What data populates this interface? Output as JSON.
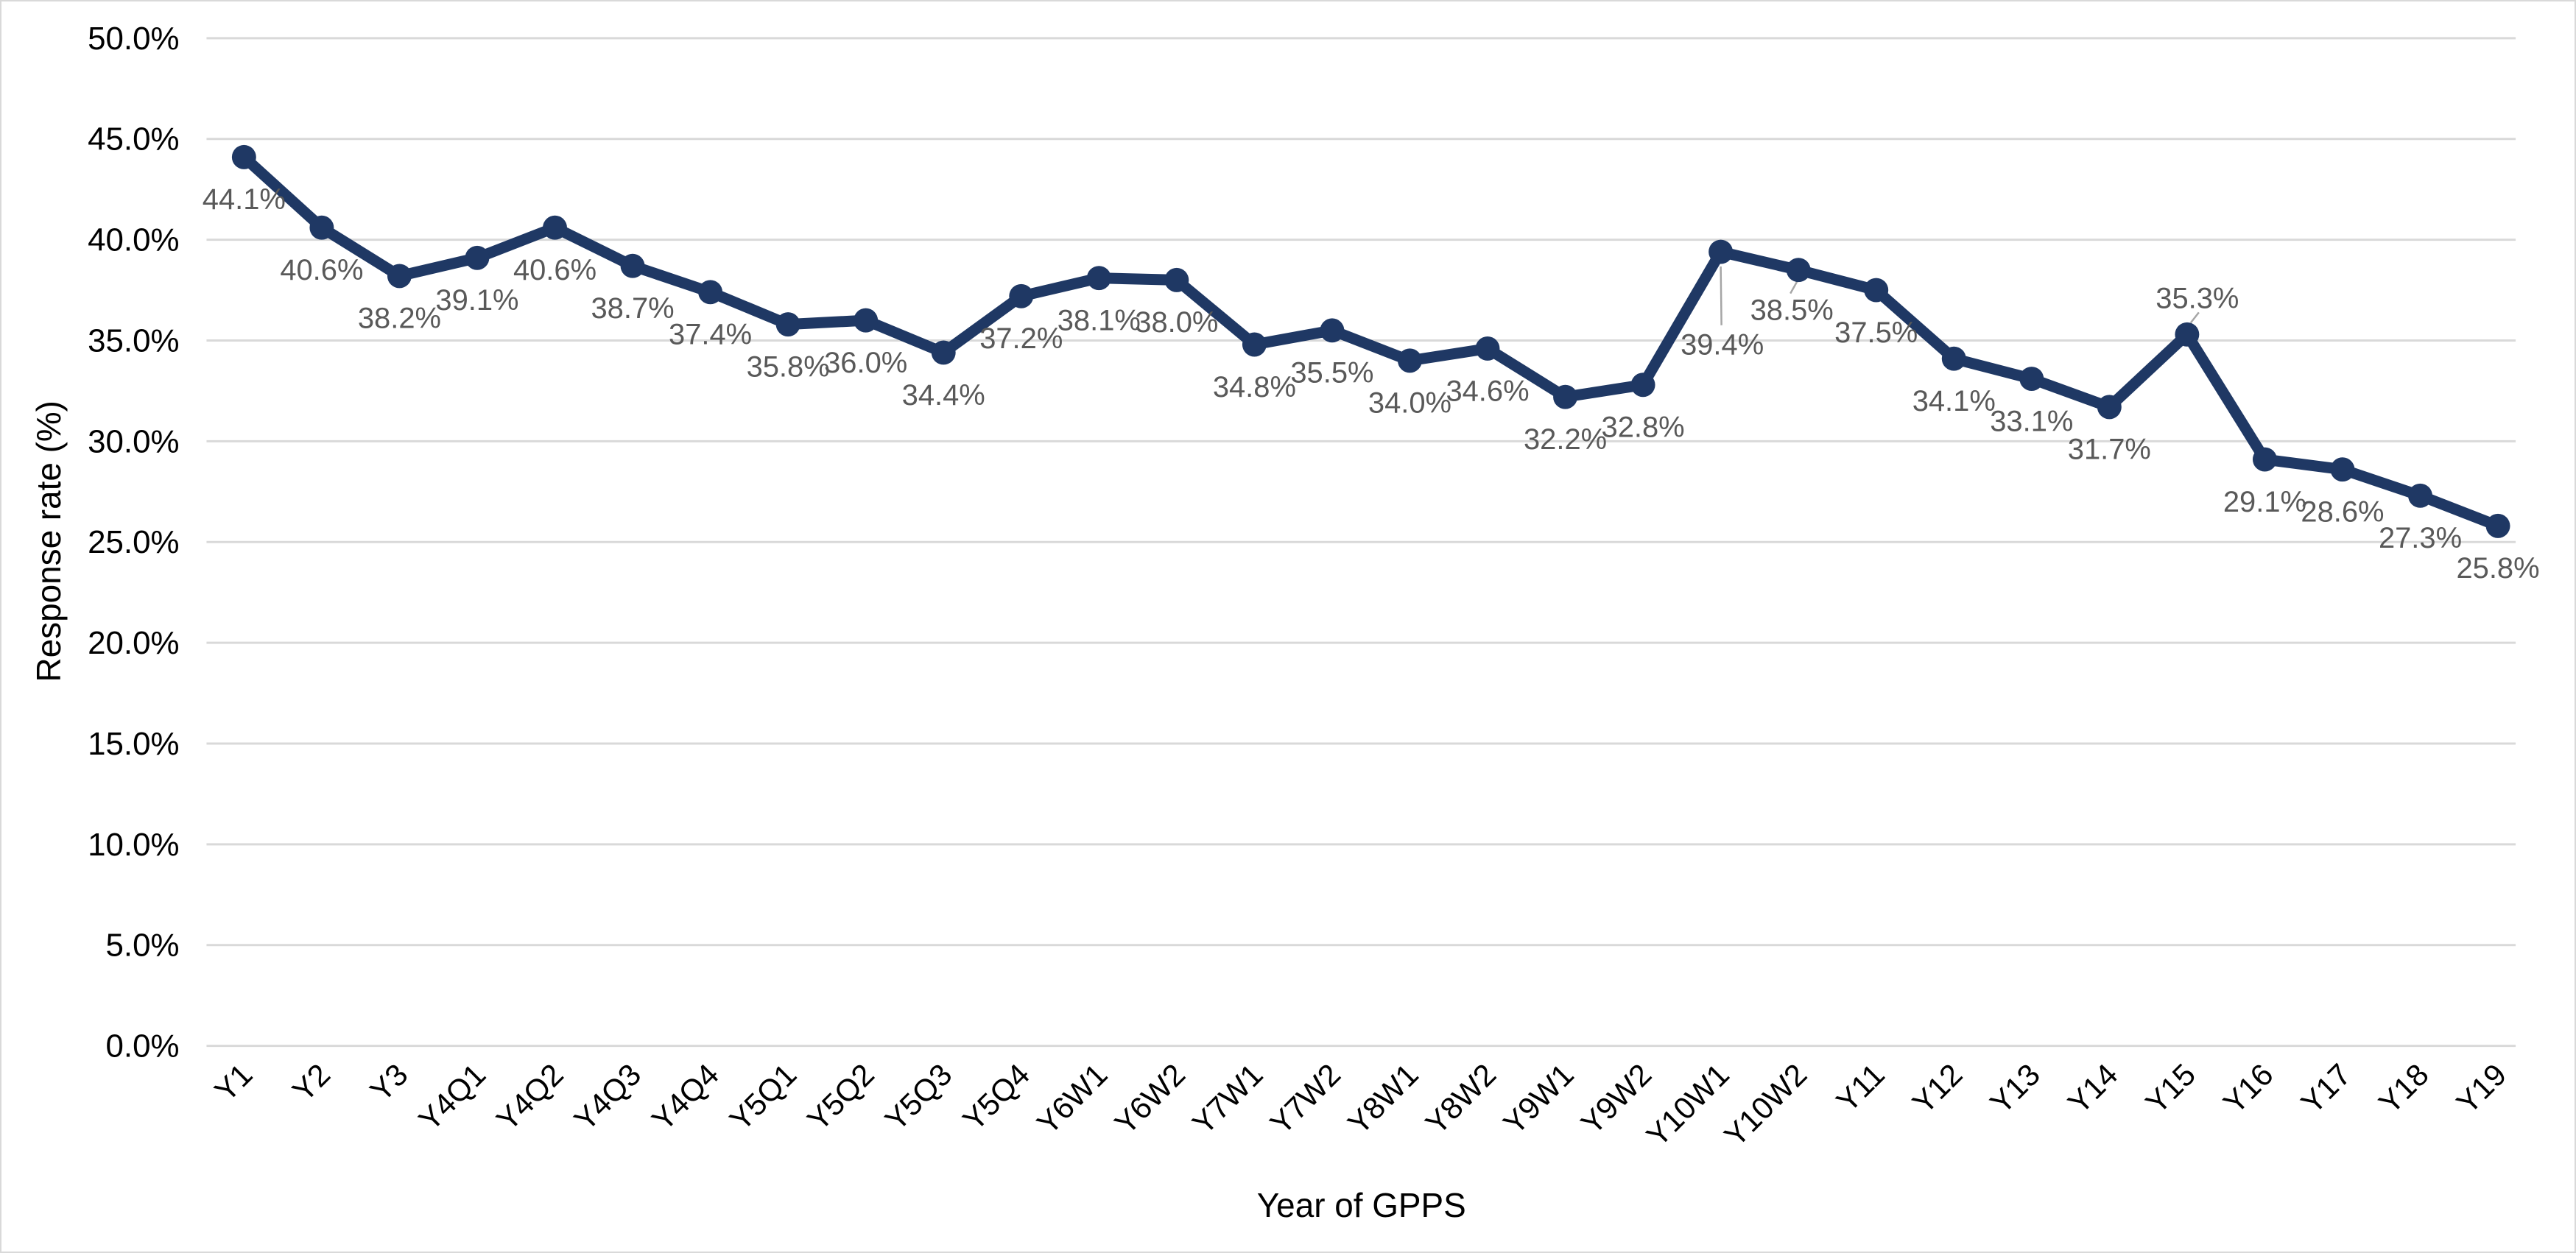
{
  "chart_data": {
    "type": "line",
    "title": "",
    "categories": [
      "Y1",
      "Y2",
      "Y3",
      "Y4Q1",
      "Y4Q2",
      "Y4Q3",
      "Y4Q4",
      "Y5Q1",
      "Y5Q2",
      "Y5Q3",
      "Y5Q4",
      "Y6W1",
      "Y6W2",
      "Y7W1",
      "Y7W2",
      "Y8W1",
      "Y8W2",
      "Y9W1",
      "Y9W2",
      "Y10W1",
      "Y10W2",
      "Y11",
      "Y12",
      "Y13",
      "Y14",
      "Y15",
      "Y16",
      "Y17",
      "Y18",
      "Y19"
    ],
    "series": [
      {
        "name": "Response rate",
        "values": [
          44.1,
          40.6,
          38.2,
          39.1,
          40.6,
          38.7,
          37.4,
          35.8,
          36.0,
          34.4,
          37.2,
          38.1,
          38.0,
          34.8,
          35.5,
          34.0,
          34.6,
          32.2,
          32.8,
          39.4,
          38.5,
          37.5,
          34.1,
          33.1,
          31.7,
          35.3,
          29.1,
          28.6,
          27.3,
          25.8
        ]
      }
    ],
    "data_labels": [
      "44.1%",
      "40.6%",
      "38.2%",
      "39.1%",
      "40.6%",
      "38.7%",
      "37.4%",
      "35.8%",
      "36.0%",
      "34.4%",
      "37.2%",
      "38.1%",
      "38.0%",
      "34.8%",
      "35.5%",
      "34.0%",
      "34.6%",
      "32.2%",
      "32.8%",
      "39.4%",
      "38.5%",
      "37.5%",
      "34.1%",
      "33.1%",
      "31.7%",
      "35.3%",
      "29.1%",
      "28.6%",
      "27.3%",
      "25.8%"
    ],
    "x_axis": {
      "title": "Year of GPPS"
    },
    "y_axis": {
      "title": "Response rate (%)",
      "tick_values": [
        0,
        5,
        10,
        15,
        20,
        25,
        30,
        35,
        40,
        45,
        50
      ],
      "tick_labels": [
        "0.0%",
        "5.0%",
        "10.0%",
        "15.0%",
        "20.0%",
        "25.0%",
        "30.0%",
        "35.0%",
        "40.0%",
        "45.0%",
        "50.0%"
      ]
    },
    "ylim": [
      0,
      50
    ],
    "grid": true,
    "legend": "none",
    "marker_style": "circle",
    "colors": {
      "line": "#1F3864",
      "marker": "#1F3864",
      "data_label": "#595959",
      "axis_text": "#000000",
      "gridline": "#D9D9D9",
      "leader_line": "#A6A6A6",
      "border": "#D9D9D9",
      "background": "#FFFFFF"
    },
    "label_offsets": {
      "default": {
        "dx": 0,
        "dy": 71
      },
      "19": {
        "dx": 2,
        "dy": 140
      },
      "20": {
        "dx": -9,
        "dy": 68
      },
      "25": {
        "dx": 14,
        "dy": -36
      }
    },
    "leader_lines": [
      {
        "index": 19,
        "from": [
          0,
          20
        ],
        "to": [
          1,
          100
        ]
      },
      {
        "index": 20,
        "from": [
          -2,
          16
        ],
        "to": [
          -11,
          32
        ]
      },
      {
        "index": 25,
        "from": [
          5,
          -16
        ],
        "to": [
          16,
          -30
        ]
      }
    ]
  }
}
